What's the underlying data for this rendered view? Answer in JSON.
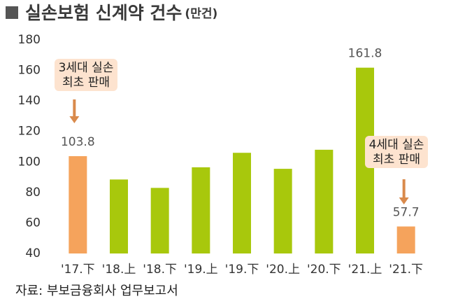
{
  "chart_data": {
    "type": "bar",
    "title": "실손보험 신계약 건수",
    "unit": "(만건)",
    "categories": [
      "'17.下",
      "'18.上",
      "'18.下",
      "'19.上",
      "'19.下",
      "'20.上",
      "'20.下",
      "'21.上",
      "'21.下"
    ],
    "values": [
      103.8,
      88.5,
      83,
      96.5,
      106,
      95.5,
      108,
      161.8,
      57.7
    ],
    "value_labels": [
      "103.8",
      null,
      null,
      null,
      null,
      null,
      null,
      "161.8",
      "57.7"
    ],
    "colors": [
      "#f5a35c",
      "#a8c80c",
      "#a8c80c",
      "#a8c80c",
      "#a8c80c",
      "#a8c80c",
      "#a8c80c",
      "#a8c80c",
      "#f5a35c"
    ],
    "ylim": [
      40,
      180
    ],
    "yticks": [
      40,
      60,
      80,
      100,
      120,
      140,
      160,
      180
    ],
    "grid": false,
    "annotations": [
      [
        "3세대 실손",
        "최초 판매"
      ],
      [
        "4세대 실손",
        "최초 판매"
      ]
    ],
    "source": "자료: 부보금융회사 업무보고서"
  }
}
